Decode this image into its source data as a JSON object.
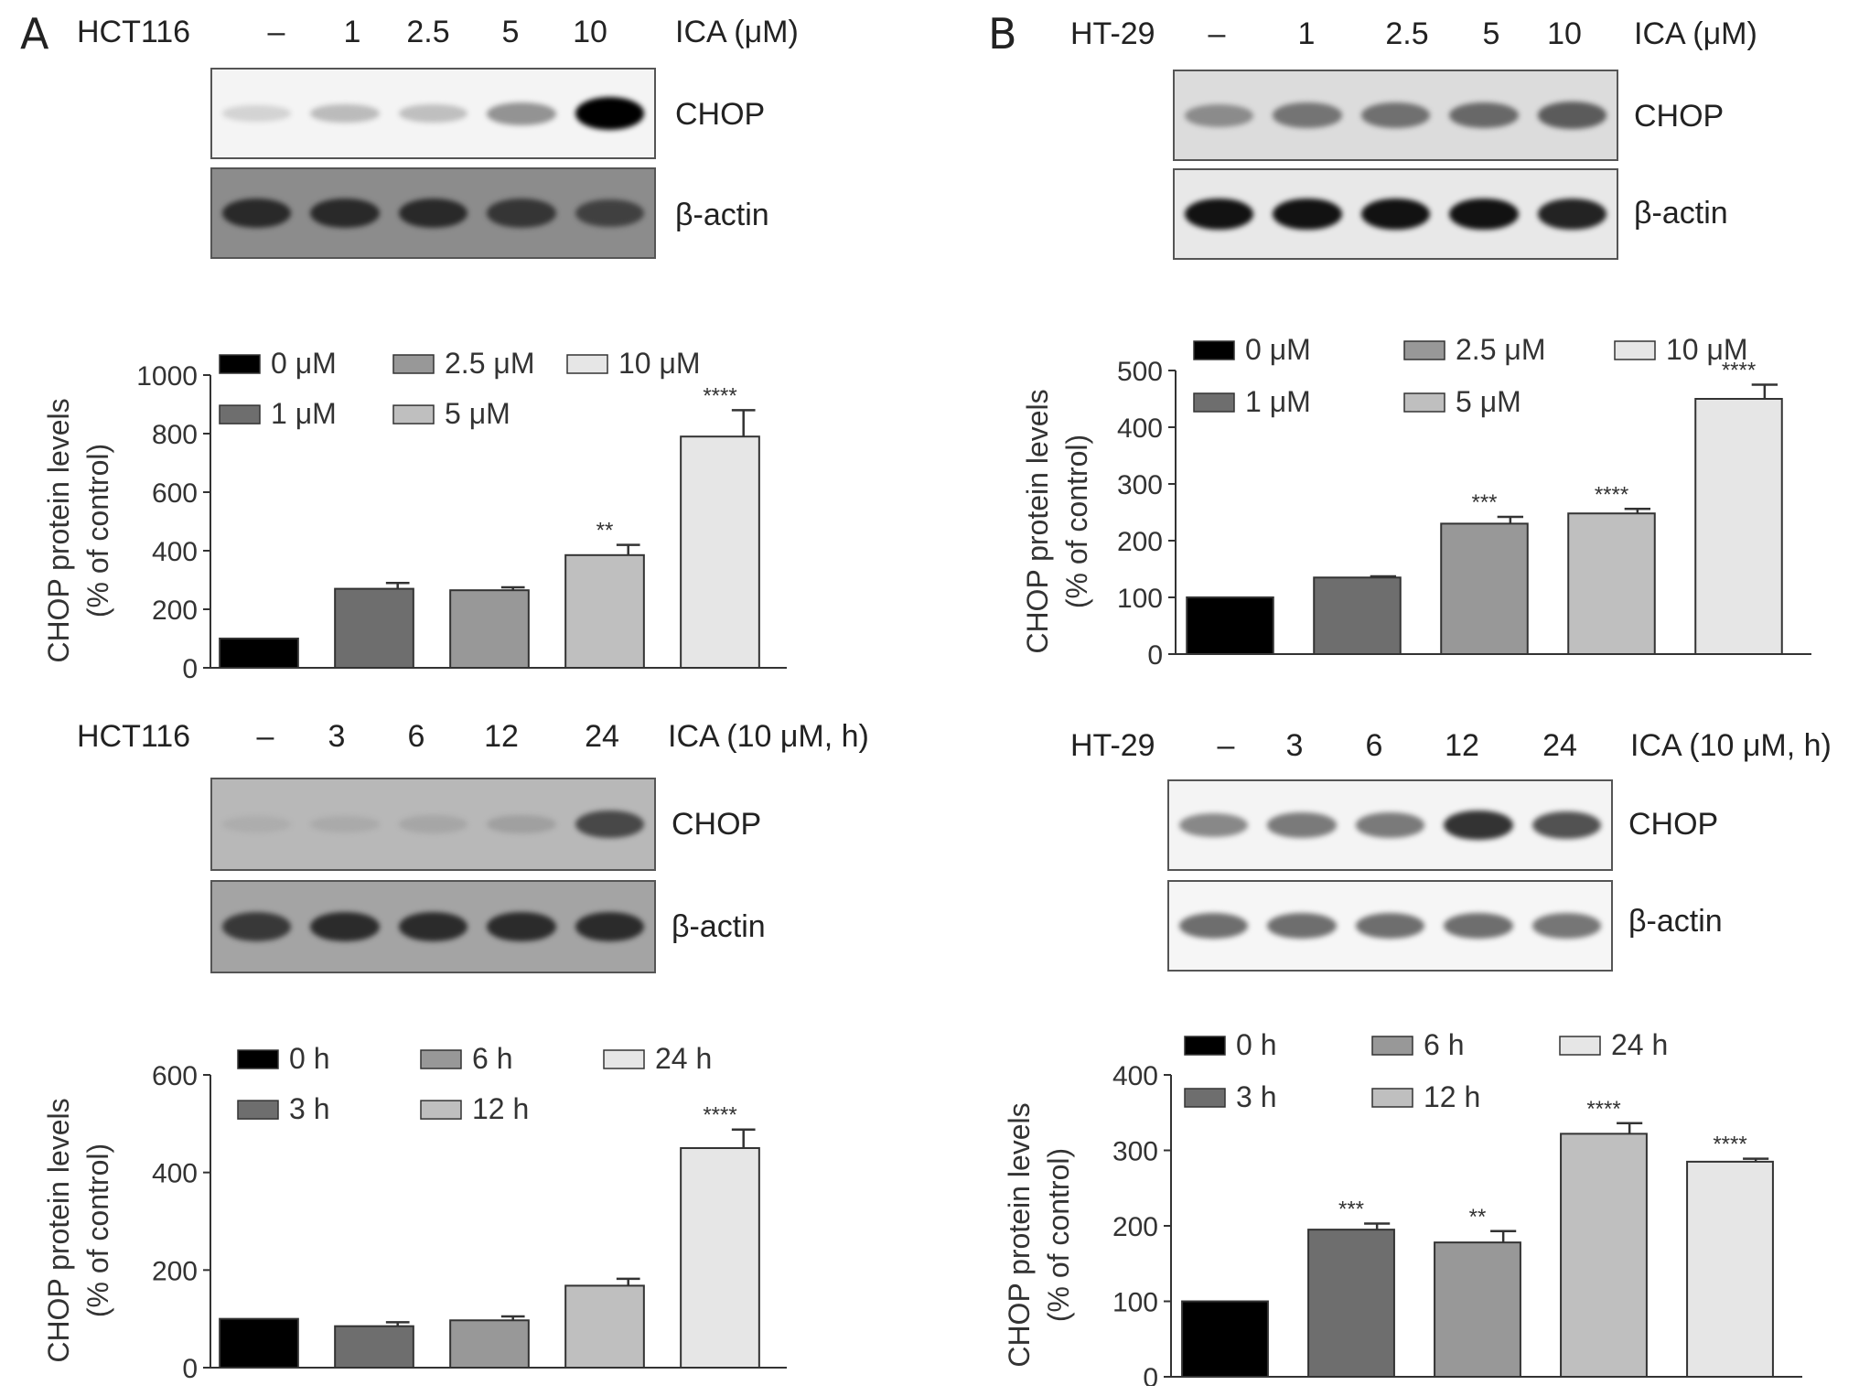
{
  "panels": [
    {
      "letter": "A",
      "blots": [
        {
          "cell_line": "HCT116",
          "lanes": [
            "–",
            "1",
            "2.5",
            "5",
            "10"
          ],
          "treatment": "ICA (μM)",
          "rows": [
            {
              "label": "CHOP",
              "intensities": [
                0.15,
                0.3,
                0.28,
                0.5,
                1.0
              ]
            },
            {
              "label": "β-actin",
              "intensities": [
                0.85,
                0.85,
                0.85,
                0.8,
                0.75
              ]
            }
          ]
        },
        {
          "cell_line": "HCT116",
          "lanes": [
            "–",
            "3",
            "6",
            "12",
            "24"
          ],
          "treatment": "ICA (10 μM, h)",
          "rows": [
            {
              "label": "CHOP",
              "intensities": [
                0.2,
                0.22,
                0.25,
                0.3,
                0.75
              ]
            },
            {
              "label": "β-actin",
              "intensities": [
                0.8,
                0.85,
                0.85,
                0.85,
                0.85
              ]
            }
          ]
        }
      ]
    },
    {
      "letter": "B",
      "blots": [
        {
          "cell_line": "HT-29",
          "lanes": [
            "–",
            "1",
            "2.5",
            "5",
            "10"
          ],
          "treatment": "ICA (μM)",
          "rows": [
            {
              "label": "CHOP",
              "intensities": [
                0.5,
                0.6,
                0.62,
                0.65,
                0.7
              ]
            },
            {
              "label": "β-actin",
              "intensities": [
                0.95,
                0.95,
                0.95,
                0.95,
                0.9
              ]
            }
          ]
        },
        {
          "cell_line": "HT-29",
          "lanes": [
            "–",
            "3",
            "6",
            "12",
            "24"
          ],
          "treatment": "ICA (10 μM, h)",
          "rows": [
            {
              "label": "CHOP",
              "intensities": [
                0.55,
                0.6,
                0.6,
                0.85,
                0.75
              ]
            },
            {
              "label": "β-actin",
              "intensities": [
                0.65,
                0.65,
                0.65,
                0.65,
                0.62
              ]
            }
          ]
        }
      ]
    }
  ],
  "chart_data": [
    {
      "id": "A-dose",
      "type": "bar",
      "categories": [
        "0 μM",
        "1 μM",
        "2.5 μM",
        "5 μM",
        "10 μM"
      ],
      "values": [
        100,
        270,
        265,
        385,
        790
      ],
      "errors": [
        0,
        20,
        10,
        35,
        90
      ],
      "significance": [
        "",
        "",
        "",
        "**",
        "****"
      ],
      "colors": [
        "#000000",
        "#6e6e6e",
        "#989898",
        "#bfbfbf",
        "#e6e6e6"
      ],
      "ylabel": "CHOP protein levels",
      "ylabel2": "(% of control)",
      "yticks": [
        0,
        200,
        400,
        600,
        800,
        1000
      ],
      "ylim": [
        0,
        1000
      ],
      "legend_placement": "top"
    },
    {
      "id": "A-time",
      "type": "bar",
      "categories": [
        "0 h",
        "3 h",
        "6 h",
        "12 h",
        "24 h"
      ],
      "values": [
        100,
        85,
        97,
        168,
        450
      ],
      "errors": [
        0,
        8,
        8,
        14,
        38
      ],
      "significance": [
        "",
        "",
        "",
        "",
        "****"
      ],
      "colors": [
        "#000000",
        "#6e6e6e",
        "#989898",
        "#bfbfbf",
        "#e6e6e6"
      ],
      "ylabel": "CHOP protein levels",
      "ylabel2": "(% of control)",
      "yticks": [
        0,
        200,
        400,
        600
      ],
      "ylim": [
        0,
        600
      ],
      "legend_placement": "top"
    },
    {
      "id": "B-dose",
      "type": "bar",
      "categories": [
        "0 μM",
        "1 μM",
        "2.5 μM",
        "5 μM",
        "10 μM"
      ],
      "values": [
        100,
        135,
        230,
        248,
        450
      ],
      "errors": [
        0,
        2,
        12,
        8,
        25
      ],
      "significance": [
        "",
        "",
        "***",
        "****",
        "****"
      ],
      "colors": [
        "#000000",
        "#6e6e6e",
        "#989898",
        "#bfbfbf",
        "#e6e6e6"
      ],
      "ylabel": "CHOP protein levels",
      "ylabel2": "(% of control)",
      "yticks": [
        0,
        100,
        200,
        300,
        400,
        500
      ],
      "ylim": [
        0,
        500
      ],
      "legend_placement": "top"
    },
    {
      "id": "B-time",
      "type": "bar",
      "categories": [
        "0 h",
        "3 h",
        "6 h",
        "12 h",
        "24 h"
      ],
      "values": [
        100,
        195,
        178,
        322,
        285
      ],
      "errors": [
        0,
        8,
        15,
        14,
        4
      ],
      "significance": [
        "",
        "***",
        "**",
        "****",
        "****"
      ],
      "colors": [
        "#000000",
        "#6e6e6e",
        "#989898",
        "#bfbfbf",
        "#e6e6e6"
      ],
      "ylabel": "CHOP protein levels",
      "ylabel2": "(% of control)",
      "yticks": [
        0,
        100,
        200,
        300,
        400
      ],
      "ylim": [
        0,
        400
      ],
      "legend_placement": "top"
    }
  ]
}
